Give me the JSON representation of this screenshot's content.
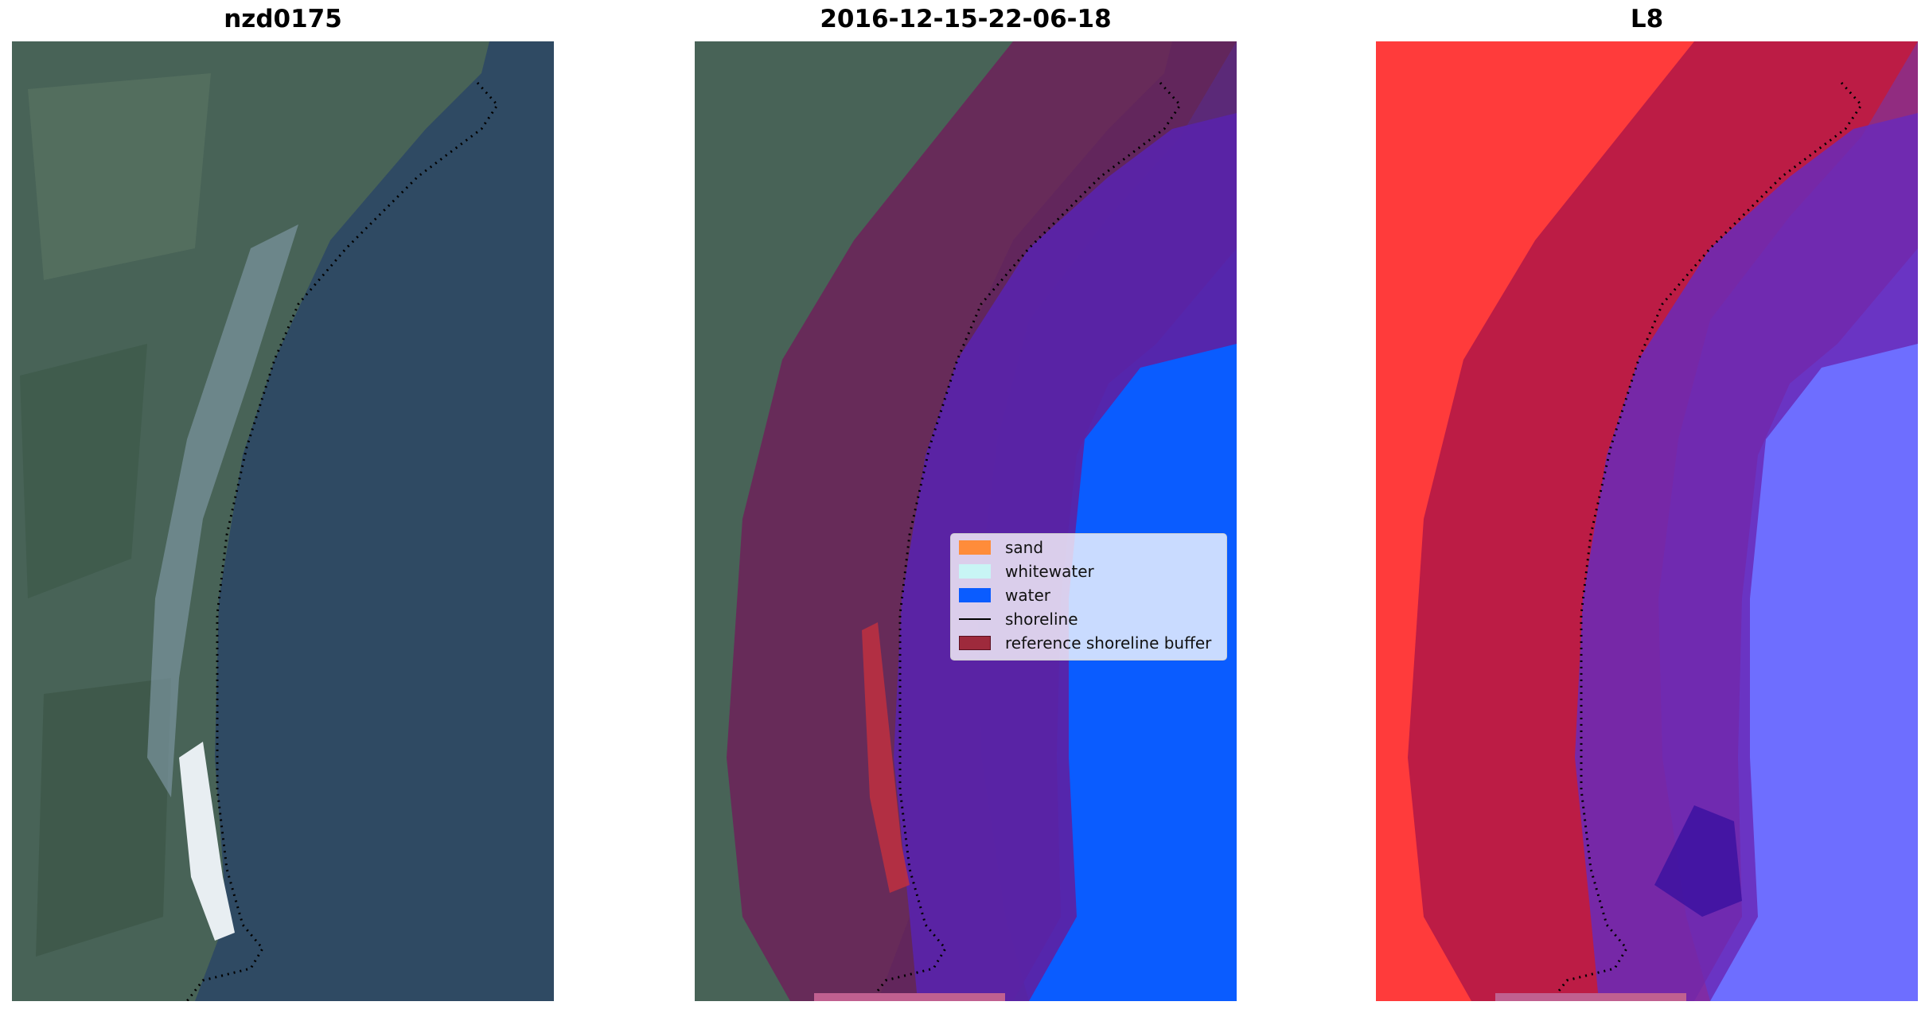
{
  "panels": {
    "rgb": {
      "title": "nzd0175"
    },
    "classified": {
      "title": "2016-12-15-22-06-18"
    },
    "index": {
      "title": "L8"
    }
  },
  "legend": {
    "items": [
      {
        "label": "sand",
        "color": "#ff8c3a"
      },
      {
        "label": "whitewater",
        "color": "#c8f5f5"
      },
      {
        "label": "water",
        "color": "#0a5cff"
      },
      {
        "label": "shoreline",
        "color": "#000000"
      },
      {
        "label": "reference shoreline buffer",
        "color": "#9e2a3c"
      }
    ]
  }
}
